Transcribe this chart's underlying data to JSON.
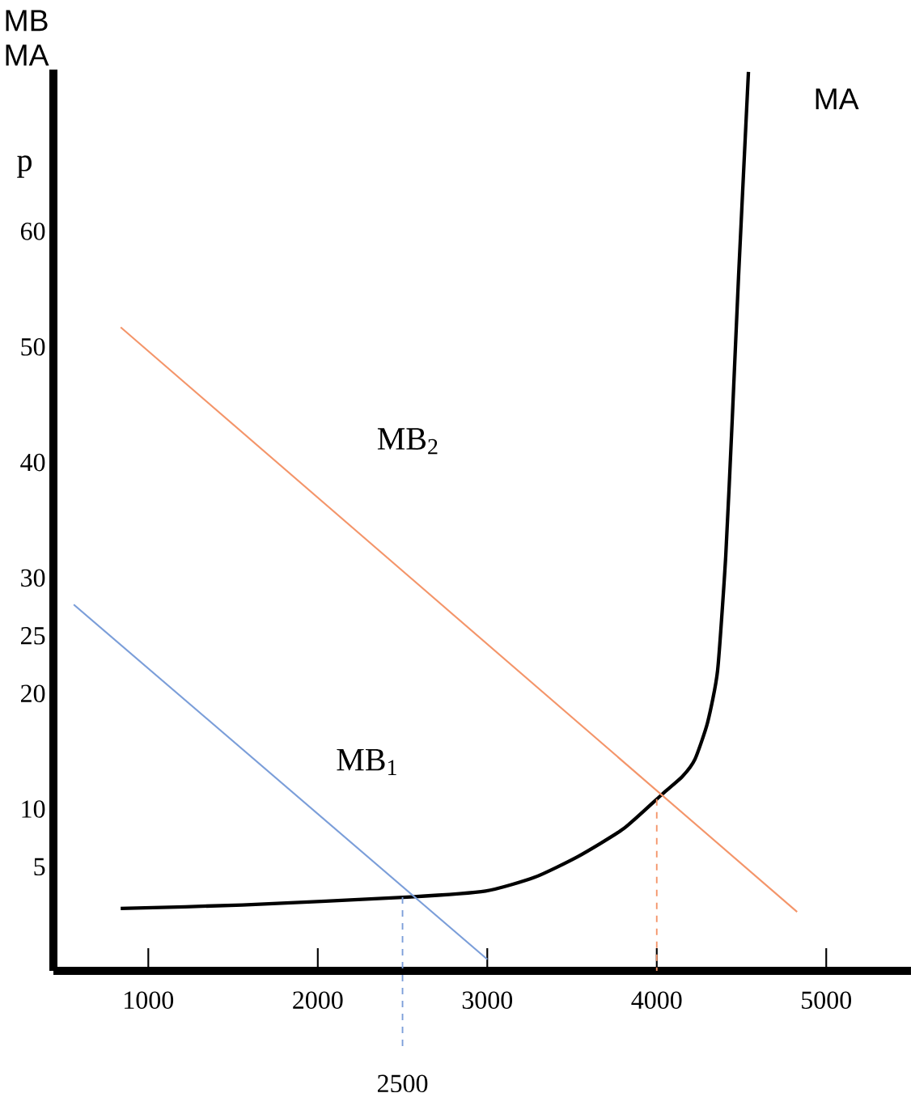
{
  "chart_data": {
    "type": "line",
    "ylabel": "MB MA",
    "annotations": [
      "p"
    ],
    "xlim": [
      440,
      5500
    ],
    "ylim": [
      -4,
      74
    ],
    "xticks": [
      1000,
      2000,
      3000,
      4000,
      5000
    ],
    "yticks": [
      5,
      10,
      20,
      25,
      30,
      40,
      50,
      60
    ],
    "grid": false,
    "marker": "none",
    "line_style": "solid",
    "series": [
      {
        "name": "MA",
        "color": "#000000",
        "x": [
          837,
          1555,
          2550,
          2990,
          3280,
          3536,
          3804,
          4033,
          4150,
          4225,
          4300,
          4359,
          4407,
          4445,
          4483,
          4541
        ],
        "values": [
          1.4,
          1.7,
          2.4,
          2.9,
          4.1,
          5.9,
          8.3,
          11.3,
          12.8,
          14.3,
          17.5,
          22,
          31.9,
          43.6,
          56.2,
          73.8
        ]
      },
      {
        "name": "MB$_{1}$",
        "color": "#7b9ed9",
        "x": [
          560,
          3000
        ],
        "values": [
          27.7,
          -3
        ]
      },
      {
        "name": "MB$_{2}$",
        "color": "#f4956a",
        "x": [
          837,
          4828
        ],
        "values": [
          51.7,
          1.1
        ]
      }
    ],
    "ref_lines": [
      {
        "axis": "x",
        "value": 2500,
        "label": "2500",
        "color": "#7b9ed9",
        "line_style": "dashed"
      },
      {
        "axis": "x",
        "value": 4000,
        "label": null,
        "color": "#f4956a",
        "line_style": "dashed"
      }
    ]
  }
}
